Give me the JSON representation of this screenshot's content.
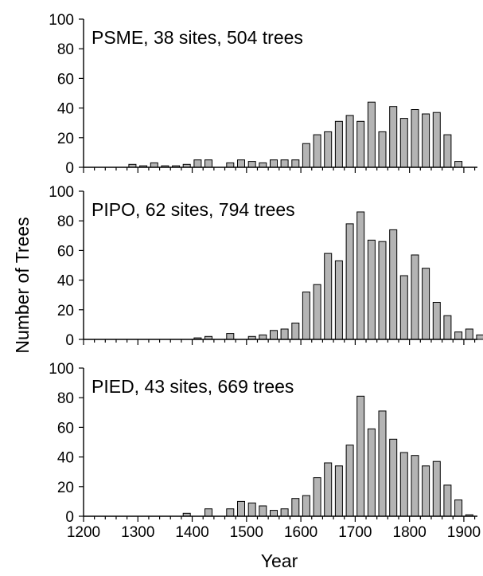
{
  "y_axis_title": "Number of Trees",
  "x_axis_title": "Year",
  "chart_data": [
    {
      "type": "bar",
      "title": "PSME, 38 sites, 504 trees",
      "xlabel": "Year",
      "ylabel": "Number of Trees",
      "xlim": [
        1200,
        1925
      ],
      "ylim": [
        0,
        100
      ],
      "x_ticks": [
        1200,
        1300,
        1400,
        1500,
        1600,
        1700,
        1800,
        1900
      ],
      "y_ticks": [
        0,
        20,
        40,
        60,
        80,
        100
      ],
      "show_x_tick_labels": false,
      "x": [
        1200,
        1220,
        1240,
        1260,
        1280,
        1300,
        1320,
        1340,
        1360,
        1380,
        1400,
        1420,
        1440,
        1460,
        1480,
        1500,
        1520,
        1540,
        1560,
        1580,
        1600,
        1620,
        1640,
        1660,
        1680,
        1700,
        1720,
        1740,
        1760,
        1780,
        1800,
        1820,
        1840,
        1860,
        1880,
        1900,
        1920
      ],
      "values": [
        0,
        0,
        0,
        0,
        2,
        1,
        3,
        1,
        1,
        2,
        5,
        5,
        0,
        3,
        5,
        4,
        3,
        5,
        5,
        5,
        16,
        22,
        24,
        31,
        35,
        31,
        44,
        24,
        41,
        33,
        39,
        36,
        37,
        22,
        4,
        0,
        0
      ]
    },
    {
      "type": "bar",
      "title": "PIPO, 62 sites, 794 trees",
      "xlabel": "Year",
      "ylabel": "Number of Trees",
      "xlim": [
        1200,
        1925
      ],
      "ylim": [
        0,
        100
      ],
      "x_ticks": [
        1200,
        1300,
        1400,
        1500,
        1600,
        1700,
        1800,
        1900
      ],
      "y_ticks": [
        0,
        20,
        40,
        60,
        80,
        100
      ],
      "show_x_tick_labels": false,
      "x": [
        1200,
        1220,
        1240,
        1260,
        1280,
        1300,
        1320,
        1340,
        1360,
        1380,
        1400,
        1420,
        1440,
        1460,
        1480,
        1500,
        1520,
        1540,
        1560,
        1580,
        1600,
        1620,
        1640,
        1660,
        1680,
        1700,
        1720,
        1740,
        1760,
        1780,
        1800,
        1820,
        1840,
        1860,
        1880,
        1900,
        1920
      ],
      "values": [
        0,
        0,
        0,
        0,
        0,
        0,
        0,
        0,
        0,
        0,
        1,
        2,
        0,
        4,
        0,
        2,
        3,
        6,
        7,
        11,
        32,
        37,
        58,
        53,
        78,
        86,
        67,
        66,
        74,
        43,
        57,
        48,
        25,
        16,
        5,
        7,
        3
      ]
    },
    {
      "type": "bar",
      "title": "PIED, 43 sites, 669 trees",
      "xlabel": "Year",
      "ylabel": "Number of Trees",
      "xlim": [
        1200,
        1925
      ],
      "ylim": [
        0,
        100
      ],
      "x_ticks": [
        1200,
        1300,
        1400,
        1500,
        1600,
        1700,
        1800,
        1900
      ],
      "y_ticks": [
        0,
        20,
        40,
        60,
        80,
        100
      ],
      "show_x_tick_labels": true,
      "x": [
        1200,
        1220,
        1240,
        1260,
        1280,
        1300,
        1320,
        1340,
        1360,
        1380,
        1400,
        1420,
        1440,
        1460,
        1480,
        1500,
        1520,
        1540,
        1560,
        1580,
        1600,
        1620,
        1640,
        1660,
        1680,
        1700,
        1720,
        1740,
        1760,
        1780,
        1800,
        1820,
        1840,
        1860,
        1880,
        1900,
        1920
      ],
      "values": [
        0,
        0,
        0,
        0,
        0,
        0,
        0,
        0,
        0,
        2,
        0,
        5,
        0,
        5,
        10,
        9,
        7,
        4,
        5,
        12,
        14,
        26,
        36,
        34,
        48,
        81,
        59,
        71,
        52,
        43,
        41,
        34,
        37,
        21,
        11,
        1,
        0
      ]
    }
  ]
}
